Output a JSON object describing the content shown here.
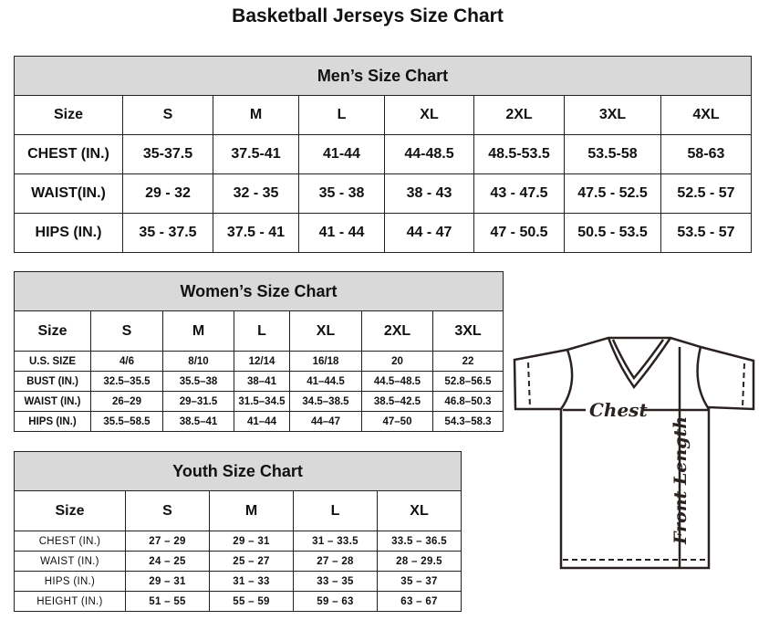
{
  "title": "Basketball Jerseys Size Chart",
  "men": {
    "title": "Men’s Size Chart",
    "header": [
      "Size",
      "S",
      "M",
      "L",
      "XL",
      "2XL",
      "3XL",
      "4XL"
    ],
    "rows": [
      [
        "CHEST (IN.)",
        "35-37.5",
        "37.5-41",
        "41-44",
        "44-48.5",
        "48.5-53.5",
        "53.5-58",
        "58-63"
      ],
      [
        "WAIST(IN.)",
        "29 - 32",
        "32 - 35",
        "35 - 38",
        "38 - 43",
        "43 - 47.5",
        "47.5 - 52.5",
        "52.5 - 57"
      ],
      [
        "HIPS (IN.)",
        "35 - 37.5",
        "37.5 - 41",
        "41 - 44",
        "44 - 47",
        "47 - 50.5",
        "50.5 - 53.5",
        "53.5 - 57"
      ]
    ]
  },
  "women": {
    "title": "Women’s Size Chart",
    "header": [
      "Size",
      "S",
      "M",
      "L",
      "XL",
      "2XL",
      "3XL"
    ],
    "rows": [
      [
        "U.S. SIZE",
        "4/6",
        "8/10",
        "12/14",
        "16/18",
        "20",
        "22"
      ],
      [
        "BUST (IN.)",
        "32.5–35.5",
        "35.5–38",
        "38–41",
        "41–44.5",
        "44.5–48.5",
        "52.8–56.5"
      ],
      [
        "WAIST (IN.)",
        "26–29",
        "29–31.5",
        "31.5–34.5",
        "34.5–38.5",
        "38.5–42.5",
        "46.8–50.3"
      ],
      [
        "HIPS (IN.)",
        "35.5–58.5",
        "38.5–41",
        "41–44",
        "44–47",
        "47–50",
        "54.3–58.3"
      ]
    ]
  },
  "youth": {
    "title": "Youth Size Chart",
    "header": [
      "Size",
      "S",
      "M",
      "L",
      "XL"
    ],
    "rows": [
      [
        "CHEST (IN.)",
        "27 – 29",
        "29 – 31",
        "31 – 33.5",
        "33.5 – 36.5"
      ],
      [
        "WAIST (IN.)",
        "24 – 25",
        "25 – 27",
        "27 – 28",
        "28 – 29.5"
      ],
      [
        "HIPS (IN.)",
        "29 – 31",
        "31 – 33",
        "33 – 35",
        "35 – 37"
      ],
      [
        "HEIGHT (IN.)",
        "51 – 55",
        "55 – 59",
        "59 – 63",
        "63 – 67"
      ]
    ]
  },
  "diagram": {
    "chest_label": "Chest",
    "length_label": "Front Length"
  }
}
